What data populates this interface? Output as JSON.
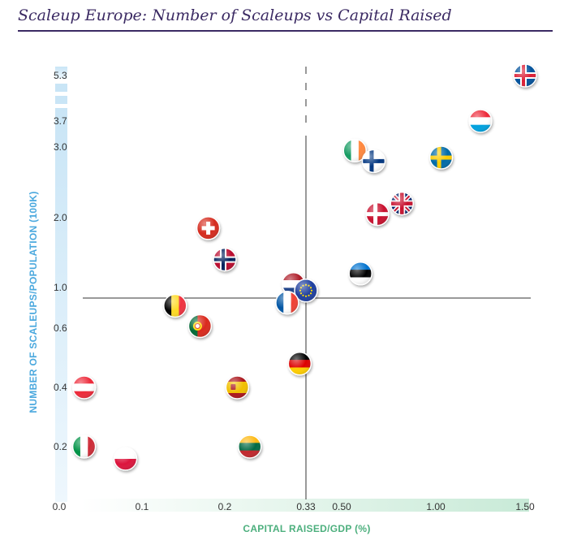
{
  "title": "Scaleup Europe: Number of Scaleups vs Capital Raised",
  "colors": {
    "title": "#3b2a63",
    "y_axis": "#4aa8de",
    "x_axis": "#4caf7d"
  },
  "chart_data": {
    "type": "scatter",
    "title": "Scaleup Europe: Number of Scaleups vs Capital Raised",
    "xlabel": "CAPITAL RAISED/GDP (%)",
    "ylabel": "NUMBER OF SCALEUPS/POPULATION (100K)",
    "x_ticks": [
      "0.0",
      "0.1",
      "0.2",
      "0.33",
      "0.50",
      "1.00",
      "1.50"
    ],
    "y_ticks": [
      "0.2",
      "0.4",
      "0.6",
      "1.0",
      "2.0",
      "3.0",
      "3.7",
      "5.3"
    ],
    "reference_lines": {
      "x": 0.33,
      "y": 1.0
    },
    "axis_scale": "non-linear (broken)",
    "grid": false,
    "legend": "none",
    "points": [
      {
        "country": "iceland",
        "x": 1.5,
        "y": 5.3
      },
      {
        "country": "luxembourg",
        "x": 1.25,
        "y": 3.7
      },
      {
        "country": "sweden",
        "x": 1.03,
        "y": 2.85
      },
      {
        "country": "ireland",
        "x": 0.57,
        "y": 2.95
      },
      {
        "country": "finland",
        "x": 0.67,
        "y": 2.8
      },
      {
        "country": "uk",
        "x": 0.82,
        "y": 2.2
      },
      {
        "country": "denmark",
        "x": 0.69,
        "y": 2.05
      },
      {
        "country": "switzerland",
        "x": 0.18,
        "y": 1.85
      },
      {
        "country": "norway",
        "x": 0.2,
        "y": 1.4
      },
      {
        "country": "estonia",
        "x": 0.6,
        "y": 1.2
      },
      {
        "country": "netherlands",
        "x": 0.31,
        "y": 1.05
      },
      {
        "country": "eu",
        "x": 0.33,
        "y": 0.97
      },
      {
        "country": "france",
        "x": 0.3,
        "y": 0.85
      },
      {
        "country": "belgium",
        "x": 0.14,
        "y": 0.82
      },
      {
        "country": "portugal",
        "x": 0.17,
        "y": 0.62
      },
      {
        "country": "germany",
        "x": 0.32,
        "y": 0.48
      },
      {
        "country": "spain",
        "x": 0.22,
        "y": 0.4
      },
      {
        "country": "austria",
        "x": 0.03,
        "y": 0.4
      },
      {
        "country": "lithuania",
        "x": 0.24,
        "y": 0.2
      },
      {
        "country": "italy",
        "x": 0.03,
        "y": 0.2
      },
      {
        "country": "poland",
        "x": 0.08,
        "y": 0.15
      }
    ]
  }
}
